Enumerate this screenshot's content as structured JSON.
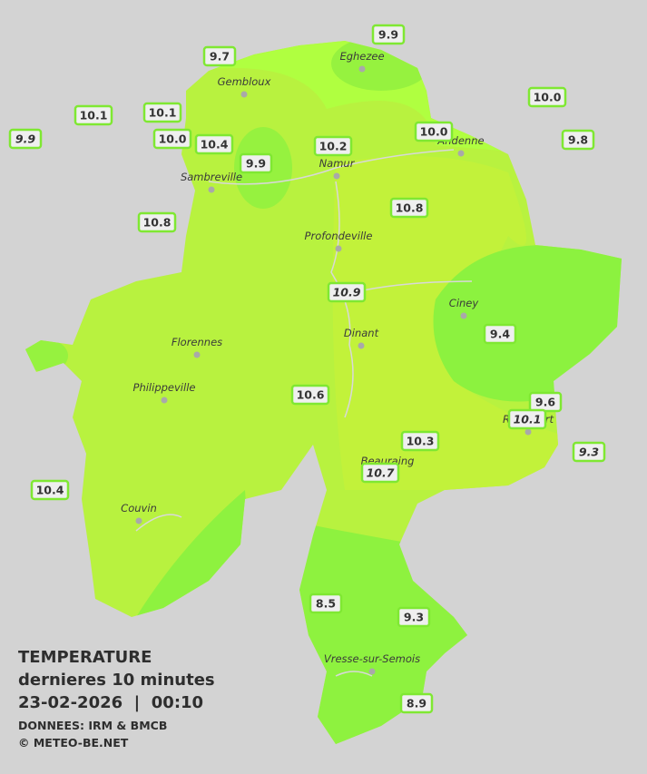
{
  "legend": {
    "title": "TEMPERATURE",
    "subtitle": "dernieres 10 minutes",
    "datetime": "23-02-2026  |  00:10",
    "source": "DONNEES: IRM & BMCB",
    "copyright": "© METEO-BE.NET"
  },
  "cities": [
    "Eghezee",
    "Gembloux",
    "Andenne",
    "Namur",
    "Sambreville",
    "Profondeville",
    "Ciney",
    "Dinant",
    "Florennes",
    "Philippeville",
    "Rochefort",
    "Beauraing",
    "Couvin",
    "Vresse-sur-Semois"
  ],
  "stations": [
    {
      "value": "9.9",
      "italic": false
    },
    {
      "value": "9.7",
      "italic": false
    },
    {
      "value": "10.1",
      "italic": false
    },
    {
      "value": "10.1",
      "italic": false
    },
    {
      "value": "10.0",
      "italic": false
    },
    {
      "value": "9.9",
      "italic": true
    },
    {
      "value": "10.0",
      "italic": false
    },
    {
      "value": "10.4",
      "italic": false
    },
    {
      "value": "10.2",
      "italic": false
    },
    {
      "value": "10.0",
      "italic": false
    },
    {
      "value": "9.8",
      "italic": false
    },
    {
      "value": "9.9",
      "italic": false
    },
    {
      "value": "10.8",
      "italic": false
    },
    {
      "value": "10.8",
      "italic": false
    },
    {
      "value": "10.9",
      "italic": true
    },
    {
      "value": "9.4",
      "italic": false
    },
    {
      "value": "10.6",
      "italic": false
    },
    {
      "value": "9.6",
      "italic": false
    },
    {
      "value": "10.1",
      "italic": true
    },
    {
      "value": "10.3",
      "italic": false
    },
    {
      "value": "9.3",
      "italic": true
    },
    {
      "value": "10.7",
      "italic": true
    },
    {
      "value": "10.4",
      "italic": false
    },
    {
      "value": "8.5",
      "italic": false
    },
    {
      "value": "9.3",
      "italic": false
    },
    {
      "value": "8.9",
      "italic": false
    }
  ]
}
